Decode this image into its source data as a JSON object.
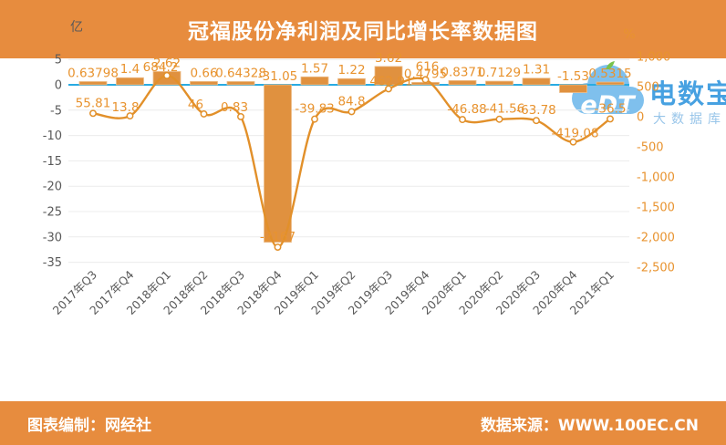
{
  "header": {
    "title": "冠福股份净利润及同比增长率数据图"
  },
  "footer": {
    "left": "图表编制：网经社",
    "right": "数据来源：WWW.100EC.CN"
  },
  "watermark": {
    "logo_text": "eDT",
    "brand": "电数宝",
    "sub": "大数据库"
  },
  "chart_data": {
    "type": "combo",
    "categories": [
      "2017年Q3",
      "2017年Q4",
      "2018年Q1",
      "2018年Q2",
      "2018年Q3",
      "2018年Q4",
      "2019年Q1",
      "2019年Q2",
      "2019年Q3",
      "2019年Q4",
      "2020年Q1",
      "2020年Q2",
      "2020年Q3",
      "2020年Q4",
      "2021年Q1"
    ],
    "series": [
      {
        "name": "净利润",
        "type": "bar",
        "axis": "left",
        "values": [
          0.63798,
          1.4,
          2.62,
          0.66,
          0.64328,
          -31.05,
          1.57,
          1.22,
          3.62,
          0.4795,
          0.8371,
          0.7129,
          1.31,
          -1.53,
          0.5315
        ],
        "labels": [
          "0.63798",
          "1.4",
          "2.62",
          "0.66",
          "0.64328",
          "-31.05",
          "1.57",
          "1.22",
          "3.62",
          "0.4795",
          "0.8371",
          "0.7129",
          "1.31",
          "-1.53",
          "0.5315"
        ]
      },
      {
        "name": "同比增长率",
        "type": "line",
        "axis": "right",
        "values": [
          55.81,
          13.8,
          684.2,
          46,
          0.83,
          -2167,
          -39.83,
          84.8,
          462.91,
          616,
          -46.88,
          -41.56,
          -63.78,
          -419.08,
          -36.5
        ],
        "labels": [
          "55.81",
          "13.8",
          "684.2",
          "46",
          "0.83",
          "-2167",
          "-39.83",
          "84.8",
          "462.91",
          "616",
          "-46.88",
          "-41.56",
          "-63.78",
          "-419.08",
          "-36.5"
        ]
      }
    ],
    "left_axis": {
      "unit": "亿",
      "min": -35,
      "max": 5,
      "ticks": [
        5,
        0,
        -5,
        -10,
        -15,
        -20,
        -25,
        -30,
        -35
      ]
    },
    "right_axis": {
      "unit": "%",
      "min": -2500,
      "max": 1000,
      "ticks": [
        1000,
        500,
        0,
        -500,
        -1000,
        -1500,
        -2000,
        -2500
      ],
      "tick_labels": [
        "1,000",
        "500",
        "0",
        "-500",
        "-1,000",
        "-1,500",
        "-2,000",
        "-2,500"
      ]
    },
    "grid": true,
    "legend": "none",
    "colors": {
      "banner": "#E78C3E",
      "bar_fill": "#E0913F",
      "bar_stroke": "#EDBE8B",
      "line": "#E2902A",
      "data_label": "#E8932F",
      "right_tick": "#E8932F",
      "zero_line": "#29ABE2",
      "gridline": "#ECECEC",
      "axis_text": "#595959"
    },
    "layout_hints": {
      "line_label_offsets": {
        "1": {
          "dx": -5,
          "dy": -5
        },
        "2": {
          "dx": -7,
          "dy": -5
        },
        "3": {
          "dx": -9,
          "dy": -6
        },
        "4": {
          "dx": -7,
          "dy": -6
        },
        "8": {
          "dx": 3,
          "dy": -4
        },
        "9": {
          "dx": 2,
          "dy": -10
        },
        "10": {
          "dx": 5,
          "dy": -7
        },
        "11": {
          "dx": 6,
          "dy": -7
        },
        "13": {
          "dx": 2,
          "dy": -5
        }
      }
    }
  }
}
